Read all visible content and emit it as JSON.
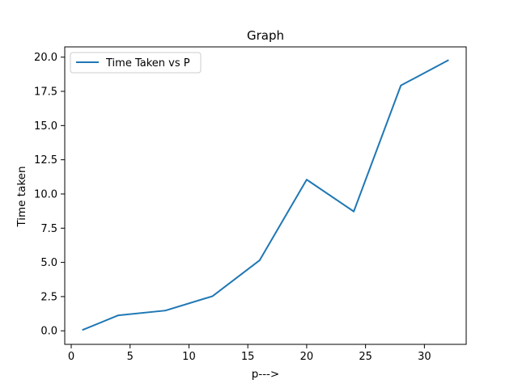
{
  "chart_data": {
    "type": "line",
    "title": "Graph",
    "xlabel": "p--->",
    "ylabel": "Time taken",
    "xlim": [
      -0.55,
      33.55
    ],
    "ylim": [
      -0.99,
      20.75
    ],
    "x_ticks": [
      0,
      5,
      10,
      15,
      20,
      25,
      30
    ],
    "x_tick_labels": [
      "0",
      "5",
      "10",
      "15",
      "20",
      "25",
      "30"
    ],
    "y_ticks": [
      0,
      2.5,
      5,
      7.5,
      10,
      12.5,
      15,
      17.5,
      20
    ],
    "y_tick_labels": [
      "0.0",
      "2.5",
      "5.0",
      "7.5",
      "10.0",
      "12.5",
      "15.0",
      "17.5",
      "20.0"
    ],
    "grid": false,
    "legend_position": "upper-left",
    "series": [
      {
        "name": "Time Taken vs P",
        "color": "#1f77b4",
        "x": [
          1,
          4,
          8,
          12,
          16,
          20,
          24,
          28,
          32
        ],
        "y": [
          0.08,
          1.13,
          1.48,
          2.53,
          5.15,
          11.05,
          8.72,
          17.93,
          19.76
        ]
      }
    ]
  }
}
